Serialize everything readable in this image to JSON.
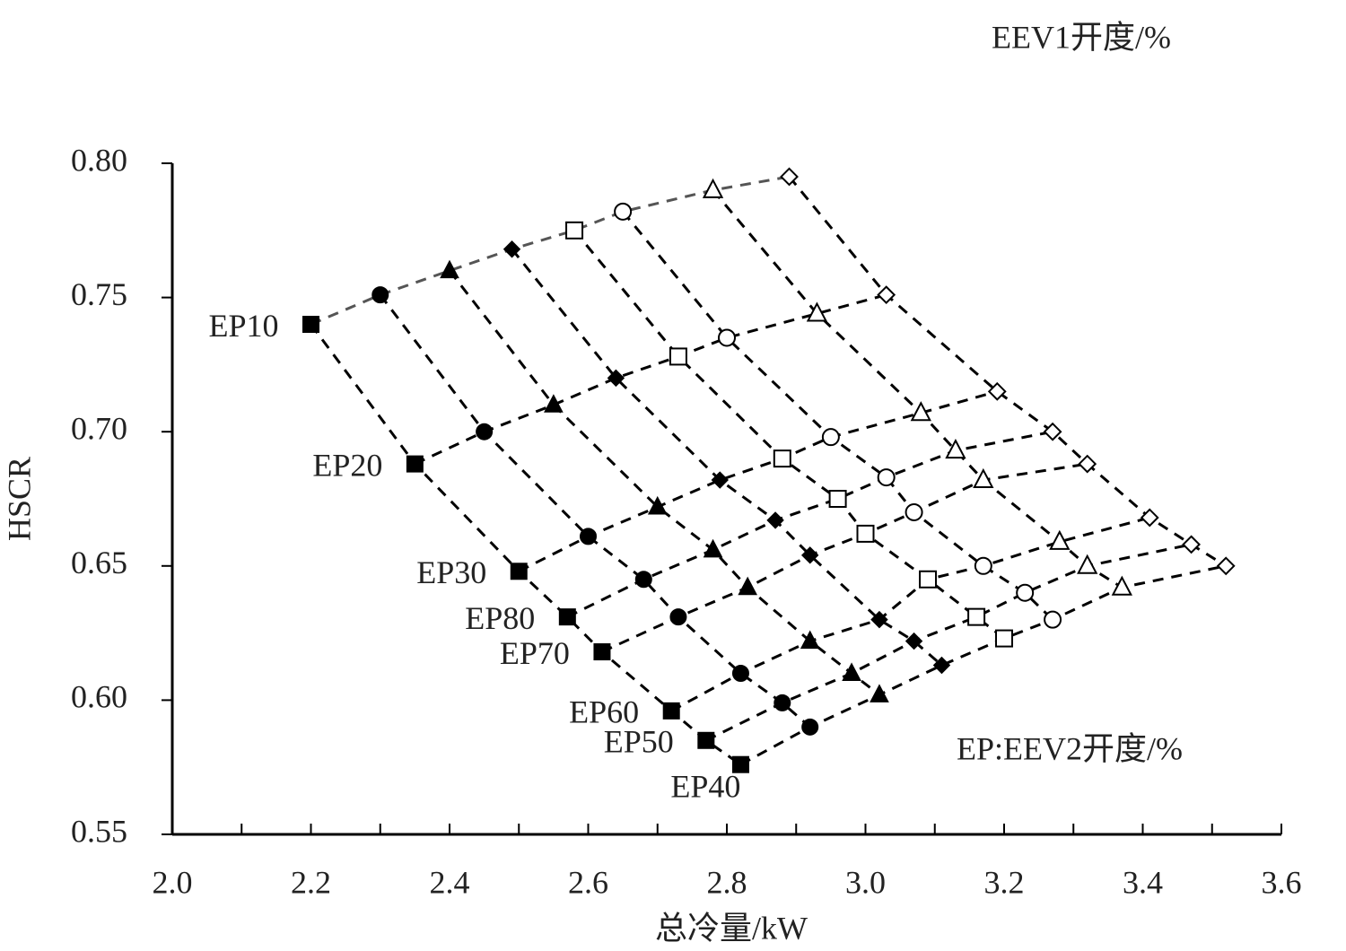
{
  "chart_data": {
    "type": "scatter",
    "legend_title": "EEV1开度/%",
    "annotation": "EP:EEV2开度/%",
    "x_label": "总冷量/kW",
    "y_label": "HSCR",
    "xlim": [
      2.0,
      3.6
    ],
    "ylim": [
      0.55,
      0.8
    ],
    "xticks": [
      {
        "value": 2.0,
        "label": "2.0"
      },
      {
        "value": 2.2,
        "label": "2.2"
      },
      {
        "value": 2.4,
        "label": "2.4"
      },
      {
        "value": 2.6,
        "label": "2.6"
      },
      {
        "value": 2.8,
        "label": "2.8"
      },
      {
        "value": 3.0,
        "label": "3.0"
      },
      {
        "value": 3.2,
        "label": "3.2"
      },
      {
        "value": 3.4,
        "label": "3.4"
      },
      {
        "value": 3.6,
        "label": "3.6"
      }
    ],
    "yticks": [
      {
        "value": 0.55,
        "label": "0.55"
      },
      {
        "value": 0.6,
        "label": "0.60"
      },
      {
        "value": 0.65,
        "label": "0.65"
      },
      {
        "value": 0.7,
        "label": "0.70"
      },
      {
        "value": 0.75,
        "label": "0.75"
      },
      {
        "value": 0.8,
        "label": "0.80"
      }
    ],
    "markers": [
      "filled-square",
      "filled-circle",
      "filled-triangle",
      "filled-diamond",
      "open-square",
      "open-circle",
      "open-triangle",
      "open-diamond"
    ],
    "color": "#000000",
    "series": [
      {
        "name": "EP10",
        "x": [
          2.2,
          2.3,
          2.4,
          2.49,
          2.58,
          2.65,
          2.78,
          2.89
        ],
        "y": [
          0.74,
          0.751,
          0.76,
          0.768,
          0.775,
          0.782,
          0.79,
          0.795
        ]
      },
      {
        "name": "EP20",
        "x": [
          2.35,
          2.45,
          2.55,
          2.64,
          2.73,
          2.8,
          2.93,
          3.03
        ],
        "y": [
          0.688,
          0.7,
          0.71,
          0.72,
          0.728,
          0.735,
          0.744,
          0.751
        ]
      },
      {
        "name": "EP30",
        "x": [
          2.5,
          2.6,
          2.7,
          2.79,
          2.88,
          2.95,
          3.08,
          3.19
        ],
        "y": [
          0.648,
          0.661,
          0.672,
          0.682,
          0.69,
          0.698,
          0.707,
          0.715
        ]
      },
      {
        "name": "EP80",
        "x": [
          2.57,
          2.68,
          2.78,
          2.87,
          2.96,
          3.03,
          3.13,
          3.27
        ],
        "y": [
          0.631,
          0.645,
          0.656,
          0.667,
          0.675,
          0.683,
          0.693,
          0.7
        ]
      },
      {
        "name": "EP70",
        "x": [
          2.62,
          2.73,
          2.83,
          2.92,
          3.0,
          3.07,
          3.17,
          3.32
        ],
        "y": [
          0.618,
          0.631,
          0.642,
          0.654,
          0.662,
          0.67,
          0.682,
          0.688
        ]
      },
      {
        "name": "EP60",
        "x": [
          2.72,
          2.82,
          2.92,
          3.02,
          3.09,
          3.17,
          3.28,
          3.41
        ],
        "y": [
          0.596,
          0.61,
          0.622,
          0.63,
          0.645,
          0.65,
          0.659,
          0.668
        ]
      },
      {
        "name": "EP50",
        "x": [
          2.77,
          2.88,
          2.98,
          3.07,
          3.16,
          3.23,
          3.32,
          3.47
        ],
        "y": [
          0.585,
          0.599,
          0.61,
          0.622,
          0.631,
          0.64,
          0.65,
          0.658
        ]
      },
      {
        "name": "EP40",
        "x": [
          2.82,
          2.92,
          3.02,
          3.11,
          3.2,
          3.27,
          3.37,
          3.52
        ],
        "y": [
          0.576,
          0.59,
          0.602,
          0.613,
          0.623,
          0.63,
          0.642,
          0.65
        ]
      }
    ]
  }
}
